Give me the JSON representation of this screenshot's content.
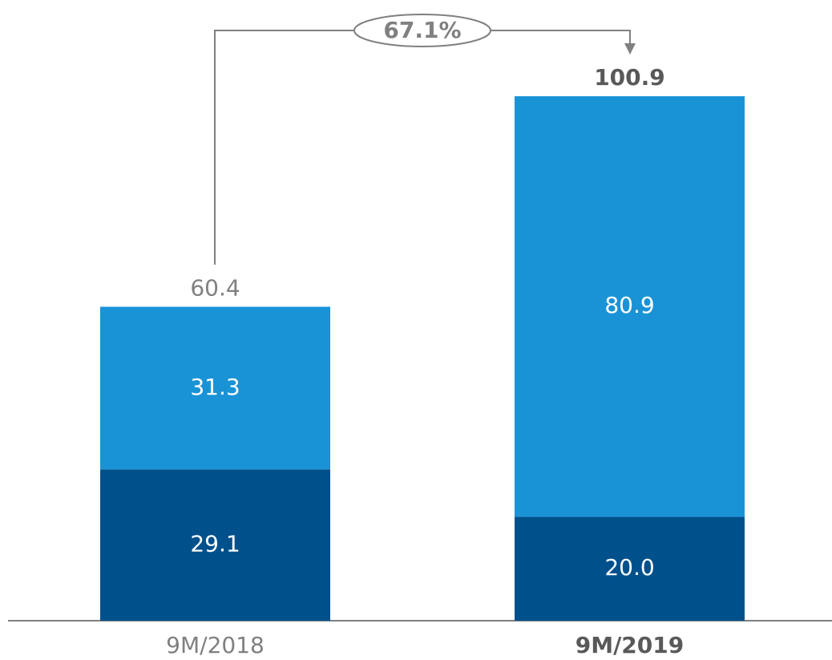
{
  "chart_data": {
    "type": "stacked_bar",
    "categories": [
      "9M/2018",
      "9M/2019"
    ],
    "category_bold": [
      false,
      true
    ],
    "series": [
      {
        "color": "#00508c",
        "values": [
          29.1,
          20.0
        ],
        "value_labels": [
          "29.1",
          "20.0"
        ]
      },
      {
        "color": "#1a93d6",
        "values": [
          31.3,
          80.9
        ],
        "value_labels": [
          "31.3",
          "80.9"
        ]
      }
    ],
    "totals": [
      60.4,
      100.9
    ],
    "annotation": "67.1%"
  }
}
